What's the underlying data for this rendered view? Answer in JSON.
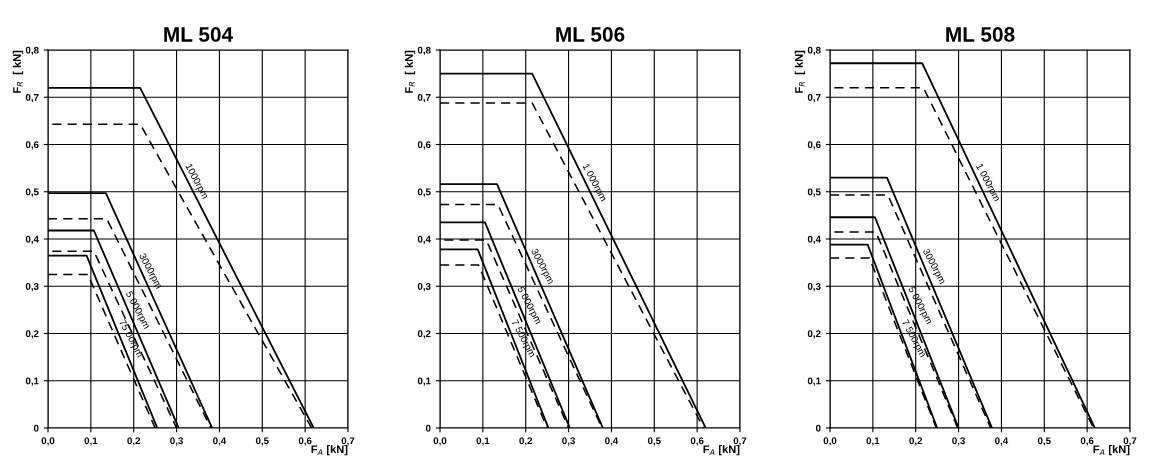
{
  "chart_data": [
    {
      "type": "line",
      "title": "ML 504",
      "xlabel": "F$_{A}$ [kN]",
      "ylabel": "F$_{R}$  [ kN]",
      "xlim": [
        0,
        0.7
      ],
      "ylim": [
        0,
        0.8
      ],
      "xticks": [
        {
          "value": 0,
          "label": "0,0"
        },
        {
          "value": 0.1,
          "label": "0,1"
        },
        {
          "value": 0.2,
          "label": "0,2"
        },
        {
          "value": 0.3,
          "label": "0,3"
        },
        {
          "value": 0.4,
          "label": "0,4"
        },
        {
          "value": 0.5,
          "label": "0,5"
        },
        {
          "value": 0.6,
          "label": "0,6"
        },
        {
          "value": 0.7,
          "label": "0,7"
        }
      ],
      "yticks": [
        0,
        {
          "value": 0.1,
          "label": "0,1"
        },
        {
          "value": 0.2,
          "label": "0,2"
        },
        {
          "value": 0.3,
          "label": "0,3"
        },
        {
          "value": 0.4,
          "label": "0,4"
        },
        {
          "value": 0.5,
          "label": "0,5"
        },
        {
          "value": 0.6,
          "label": "0,6"
        },
        {
          "value": 0.7,
          "label": "0,7"
        },
        {
          "value": 0.8,
          "label": "0,8"
        }
      ],
      "grid": true,
      "series": [
        {
          "color": "#000000",
          "line_style": "solid",
          "x": [
            0,
            0.215,
            0.62
          ],
          "values": [
            0.72,
            0.72,
            0
          ]
        },
        {
          "color": "#000000",
          "line_style": "dashed",
          "x": [
            0.01,
            0.215,
            0.615
          ],
          "values": [
            0.643,
            0.643,
            0
          ]
        },
        {
          "color": "#000000",
          "line_style": "solid",
          "x": [
            0,
            0.135,
            0.383
          ],
          "values": [
            0.497,
            0.497,
            0
          ]
        },
        {
          "color": "#000000",
          "line_style": "dashed",
          "x": [
            0,
            0.137,
            0.38
          ],
          "values": [
            0.443,
            0.443,
            0
          ]
        },
        {
          "color": "#000000",
          "line_style": "solid",
          "x": [
            0,
            0.107,
            0.305
          ],
          "values": [
            0.418,
            0.418,
            0
          ]
        },
        {
          "color": "#000000",
          "line_style": "dashed",
          "x": [
            0.01,
            0.107,
            0.3
          ],
          "values": [
            0.374,
            0.374,
            0
          ]
        },
        {
          "color": "#000000",
          "line_style": "solid",
          "x": [
            0,
            0.09,
            0.255
          ],
          "values": [
            0.365,
            0.365,
            0
          ]
        },
        {
          "color": "#000000",
          "line_style": "dashed",
          "x": [
            0,
            0.093,
            0.25
          ],
          "values": [
            0.325,
            0.325,
            0
          ]
        }
      ],
      "annotations": [
        {
          "text": "1000rpm",
          "x": 0.311,
          "y": 0.55
        },
        {
          "text": "3000rpm",
          "x": 0.203,
          "y": 0.36
        },
        {
          "text": "5 000rpm",
          "x": 0.172,
          "y": 0.28
        },
        {
          "text": "75 00rpm",
          "x": 0.156,
          "y": 0.22
        }
      ]
    },
    {
      "type": "line",
      "title": "ML 506",
      "xlabel": "F$_{A}$ [kN]",
      "ylabel": "F$_{R}$  [ kN]",
      "xlim": [
        0,
        0.7
      ],
      "ylim": [
        0,
        0.8
      ],
      "xticks": [
        {
          "value": 0,
          "label": "0,0"
        },
        {
          "value": 0.1,
          "label": "0,1"
        },
        {
          "value": 0.2,
          "label": "0,2"
        },
        {
          "value": 0.3,
          "label": "0,3"
        },
        {
          "value": 0.4,
          "label": "0,4"
        },
        {
          "value": 0.5,
          "label": "0,5"
        },
        {
          "value": 0.6,
          "label": "0,6"
        },
        {
          "value": 0.7,
          "label": "0,7"
        }
      ],
      "yticks": [
        0,
        {
          "value": 0.1,
          "label": "0,1"
        },
        {
          "value": 0.2,
          "label": "0,2"
        },
        {
          "value": 0.3,
          "label": "0,3"
        },
        {
          "value": 0.4,
          "label": "0,4"
        },
        {
          "value": 0.5,
          "label": "0,5"
        },
        {
          "value": 0.6,
          "label": "0,6"
        },
        {
          "value": 0.7,
          "label": "0,7"
        },
        {
          "value": 0.8,
          "label": "0,8"
        }
      ],
      "grid": true,
      "series": [
        {
          "color": "#000000",
          "line_style": "solid",
          "x": [
            0,
            0.215,
            0.62
          ],
          "values": [
            0.75,
            0.75,
            0
          ]
        },
        {
          "color": "#000000",
          "line_style": "dashed",
          "x": [
            0,
            0.215,
            0.615
          ],
          "values": [
            0.688,
            0.688,
            0
          ]
        },
        {
          "color": "#000000",
          "line_style": "solid",
          "x": [
            0,
            0.133,
            0.38
          ],
          "values": [
            0.516,
            0.516,
            0
          ]
        },
        {
          "color": "#000000",
          "line_style": "dashed",
          "x": [
            0,
            0.135,
            0.378
          ],
          "values": [
            0.473,
            0.473,
            0
          ]
        },
        {
          "color": "#000000",
          "line_style": "solid",
          "x": [
            0,
            0.105,
            0.303
          ],
          "values": [
            0.435,
            0.435,
            0
          ]
        },
        {
          "color": "#000000",
          "line_style": "dashed",
          "x": [
            0.01,
            0.108,
            0.3
          ],
          "values": [
            0.398,
            0.398,
            0
          ]
        },
        {
          "color": "#000000",
          "line_style": "solid",
          "x": [
            0,
            0.088,
            0.253
          ],
          "values": [
            0.378,
            0.378,
            0
          ]
        },
        {
          "color": "#000000",
          "line_style": "dashed",
          "x": [
            0,
            0.09,
            0.25
          ],
          "values": [
            0.345,
            0.345,
            0
          ]
        }
      ],
      "annotations": [
        {
          "text": "1 000rpm",
          "x": 0.323,
          "y": 0.55
        },
        {
          "text": "3000rpm",
          "x": 0.203,
          "y": 0.37
        },
        {
          "text": "5 000rpm",
          "x": 0.171,
          "y": 0.29
        },
        {
          "text": "7 500rpm",
          "x": 0.157,
          "y": 0.22
        }
      ]
    },
    {
      "type": "line",
      "title": "ML 508",
      "xlabel": "F$_{A}$ [kN]",
      "ylabel": "F$_{R}$  [ kN]",
      "xlim": [
        0,
        0.7
      ],
      "ylim": [
        0,
        0.8
      ],
      "xticks": [
        {
          "value": 0,
          "label": "0,0"
        },
        {
          "value": 0.1,
          "label": "0,1"
        },
        {
          "value": 0.2,
          "label": "0,2"
        },
        {
          "value": 0.3,
          "label": "0,3"
        },
        {
          "value": 0.4,
          "label": "0,4"
        },
        {
          "value": 0.5,
          "label": "0,5"
        },
        {
          "value": 0.6,
          "label": "0,6"
        },
        {
          "value": 0.7,
          "label": "0,7"
        }
      ],
      "yticks": [
        0,
        {
          "value": 0.1,
          "label": "0,1"
        },
        {
          "value": 0.2,
          "label": "0,2"
        },
        {
          "value": 0.3,
          "label": "0,3"
        },
        {
          "value": 0.4,
          "label": "0,4"
        },
        {
          "value": 0.5,
          "label": "0,5"
        },
        {
          "value": 0.6,
          "label": "0,6"
        },
        {
          "value": 0.7,
          "label": "0,7"
        },
        {
          "value": 0.8,
          "label": "0,8"
        }
      ],
      "grid": true,
      "series": [
        {
          "color": "#000000",
          "line_style": "solid",
          "x": [
            0,
            0.215,
            0.618
          ],
          "values": [
            0.772,
            0.772,
            0
          ]
        },
        {
          "color": "#000000",
          "line_style": "dashed",
          "x": [
            0.01,
            0.218,
            0.615
          ],
          "values": [
            0.72,
            0.72,
            0
          ]
        },
        {
          "color": "#000000",
          "line_style": "solid",
          "x": [
            0,
            0.133,
            0.378
          ],
          "values": [
            0.53,
            0.53,
            0
          ]
        },
        {
          "color": "#000000",
          "line_style": "dashed",
          "x": [
            0,
            0.135,
            0.375
          ],
          "values": [
            0.493,
            0.493,
            0
          ]
        },
        {
          "color": "#000000",
          "line_style": "solid",
          "x": [
            0,
            0.105,
            0.3
          ],
          "values": [
            0.446,
            0.446,
            0
          ]
        },
        {
          "color": "#000000",
          "line_style": "dashed",
          "x": [
            0.01,
            0.107,
            0.298
          ],
          "values": [
            0.415,
            0.415,
            0
          ]
        },
        {
          "color": "#000000",
          "line_style": "solid",
          "x": [
            0,
            0.088,
            0.25
          ],
          "values": [
            0.388,
            0.388,
            0
          ]
        },
        {
          "color": "#000000",
          "line_style": "dashed",
          "x": [
            0,
            0.092,
            0.248
          ],
          "values": [
            0.36,
            0.36,
            0
          ]
        }
      ],
      "annotations": [
        {
          "text": "1 000rpm",
          "x": 0.331,
          "y": 0.55
        },
        {
          "text": "3000rpm",
          "x": 0.207,
          "y": 0.37
        },
        {
          "text": "5 000rpm",
          "x": 0.173,
          "y": 0.29
        },
        {
          "text": "7 500rpm",
          "x": 0.158,
          "y": 0.22
        }
      ]
    }
  ]
}
